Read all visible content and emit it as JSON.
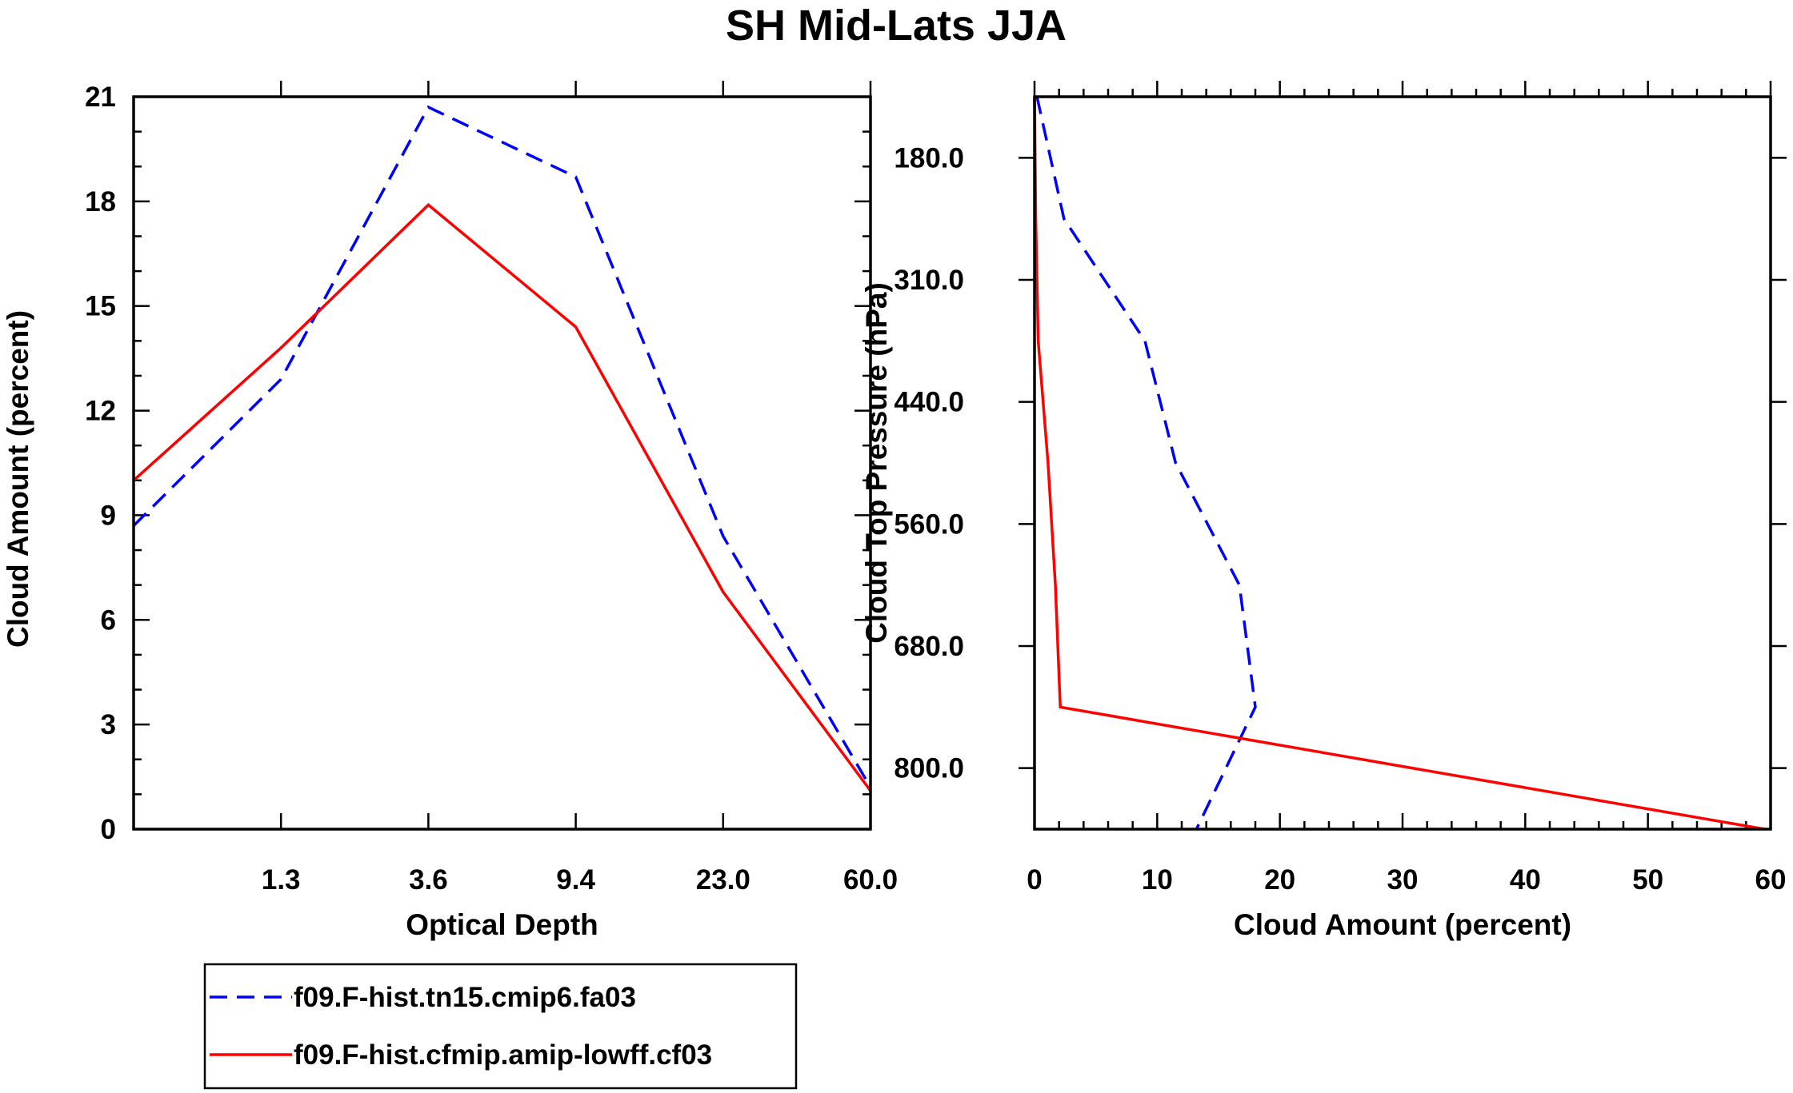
{
  "title": "SH Mid-Lats JJA",
  "colors": {
    "series_a": "#0000ff",
    "series_b": "#ff0000",
    "axes": "#000000"
  },
  "legend": {
    "placement": "bottom-left",
    "items": [
      {
        "label": "f09.F-hist.tn15.cmip6.fa03",
        "color": "#0000ff",
        "dash": "dashed"
      },
      {
        "label": "f09.F-hist.cfmip.amip-lowff.cf03",
        "color": "#ff0000",
        "dash": "solid"
      }
    ]
  },
  "chart_data": [
    {
      "type": "line",
      "name": "optical-depth-panel",
      "xlabel": "Optical Depth",
      "ylabel": "Cloud Amount (percent)",
      "x_tick_labels": [
        "1.3",
        "3.6",
        "9.4",
        "23.0",
        "60.0"
      ],
      "x_index": [
        0,
        1,
        2,
        3,
        4,
        5
      ],
      "ylim": [
        0,
        21
      ],
      "y_ticks": [
        0,
        3,
        6,
        9,
        12,
        15,
        18,
        21
      ],
      "series": [
        {
          "name": "f09.F-hist.tn15.cmip6.fa03",
          "values": [
            8.7,
            12.9,
            20.7,
            18.7,
            8.4,
            1.2
          ]
        },
        {
          "name": "f09.F-hist.cfmip.amip-lowff.cf03",
          "values": [
            10.0,
            13.8,
            17.9,
            14.4,
            6.8,
            1.1
          ]
        }
      ]
    },
    {
      "type": "line",
      "name": "cloud-top-pressure-panel",
      "xlabel": "Cloud Amount (percent)",
      "ylabel": "Cloud Top Pressure (hPa)",
      "xlim": [
        0,
        60
      ],
      "x_ticks": [
        0,
        10,
        20,
        30,
        40,
        50,
        60
      ],
      "y_tick_labels": [
        "180.0",
        "310.0",
        "440.0",
        "560.0",
        "680.0",
        "800.0"
      ],
      "y_index": [
        0,
        1,
        2,
        3,
        4,
        5,
        6
      ],
      "y_inverted": true,
      "series": [
        {
          "name": "f09.F-hist.tn15.cmip6.fa03",
          "values": [
            0.2,
            2.4,
            9.0,
            11.5,
            16.7,
            18.0,
            13.2
          ]
        },
        {
          "name": "f09.F-hist.cfmip.amip-lowff.cf03",
          "values": [
            0.0,
            0.1,
            0.3,
            1.1,
            1.7,
            2.1,
            59.5
          ]
        }
      ]
    }
  ]
}
